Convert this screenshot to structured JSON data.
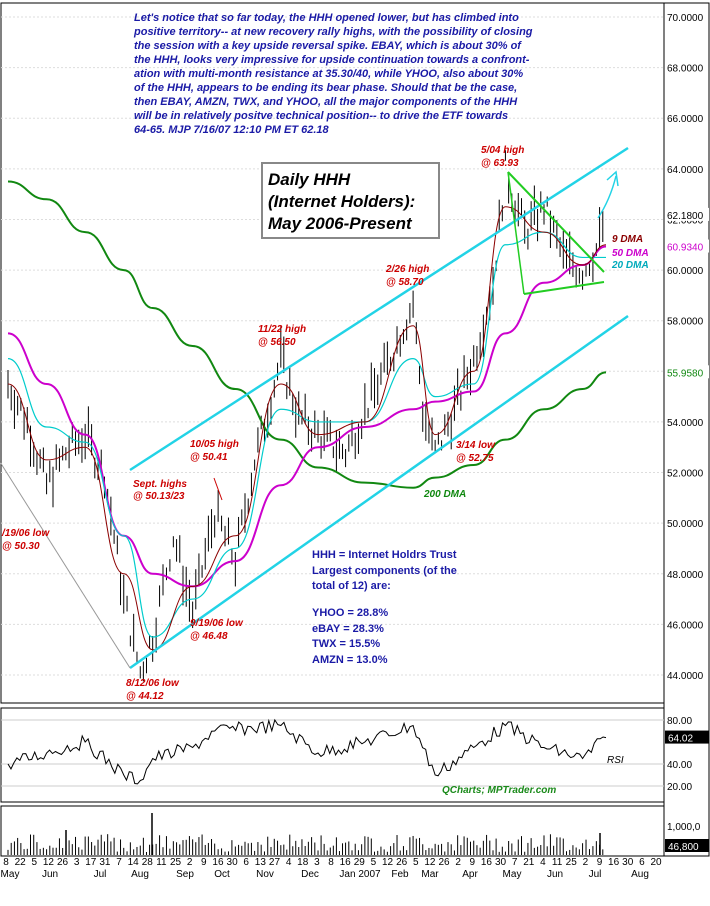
{
  "commentary": [
    "Let's notice that so far today, the HHH opened lower, but has climbed into",
    "positive territory-- at new recovery rally highs, with the possibility of closing",
    "the session with a key upside reversal spike.  EBAY, which is about 30% of",
    "the HHH, looks very impressive for upside continuation towards a confront-",
    "ation with multi-month resistance at 35.30/40, while YHOO, also about 30%",
    "of the HHH, appears to be ending its bear phase. Should that be the case,",
    "then EBAY, AMZN, TWX, and YHOO, all the major components of the HHH",
    "will be in relatively positve technical position-- to drive the ETF towards",
    "64-65.  MJP  7/16/07  12:10 PM ET  62.18"
  ],
  "title_box": [
    "Daily HHH",
    "(Internet Holders):",
    "May 2006-Present"
  ],
  "info_box": [
    "HHH = Internet Holdrs Trust",
    "Largest components (of the",
    "total of 12) are:",
    "",
    "YHOO = 28.8%",
    "eBAY = 28.3%",
    "TWX = 15.5%",
    "AMZN = 13.0%"
  ],
  "annotations": [
    {
      "lines": [
        "5/04 high",
        "@ 63.93"
      ]
    },
    {
      "lines": [
        "2/26 high",
        "@ 58.70"
      ]
    },
    {
      "lines": [
        "11/22 high",
        "@ 56.50"
      ]
    },
    {
      "lines": [
        "10/05 high",
        "@ 50.41"
      ]
    },
    {
      "lines": [
        "Sept. highs",
        "@ 50.13/23"
      ]
    },
    {
      "lines": [
        "9/19/06 low",
        "@ 46.48"
      ]
    },
    {
      "lines": [
        "8/12/06 low",
        "@ 44.12"
      ]
    },
    {
      "lines": [
        "3/14 low",
        "@ 52.75"
      ]
    },
    {
      "lines": [
        "/19/06 low",
        "@ 50.30"
      ]
    }
  ],
  "ma_labels": {
    "dma9": "9 DMA",
    "dma50": "50 DMA",
    "dma20": "20 DMA",
    "dma200": "200 DMA"
  },
  "credit": "QCharts; MPTrader.com",
  "rsi_label": "RSI",
  "colors": {
    "channel": "#22d3e6",
    "triangle": "#22cc22",
    "dma9": "#8b0000",
    "dma20": "#00cccc",
    "dma50": "#cc00cc",
    "dma200": "#118811",
    "price": "#000000",
    "annotation": "#cc0000",
    "commentary": "#1a1aa6"
  },
  "chart_data": {
    "type": "line",
    "price_axis": {
      "ticks": [
        "70.0000",
        "68.0000",
        "66.0000",
        "64.0000",
        "62.0000",
        "60.0000",
        "58.0000",
        "56.0000",
        "54.0000",
        "52.0000",
        "50.0000",
        "48.0000",
        "46.0000",
        "44.0000"
      ],
      "ylim": [
        43,
        70.5
      ],
      "last_price_labels": [
        {
          "text": "62.1800",
          "value": 62.18,
          "color": "#000000"
        },
        {
          "text": "60.9340",
          "value": 60.93,
          "color": "#cc00cc"
        },
        {
          "text": "55.9580",
          "value": 55.96,
          "color": "#118811"
        }
      ]
    },
    "rsi_axis": {
      "ticks": [
        "80.00",
        "40.00",
        "20.00"
      ],
      "ylim": [
        10,
        90
      ],
      "value_label": "64.02",
      "value": 64.02
    },
    "volume_axis": {
      "ticks": [
        "1,000,0"
      ],
      "value_label": "46,800"
    },
    "x_axis": {
      "day_ticks": [
        "8",
        "22",
        "5",
        "12",
        "26",
        "3",
        "17",
        "31",
        "7",
        "14",
        "28",
        "11",
        "25",
        "2",
        "9",
        "16",
        "30",
        "6",
        "13",
        "27",
        "4",
        "18",
        "3",
        "8",
        "16",
        "29",
        "5",
        "12",
        "26",
        "5",
        "12",
        "26",
        "2",
        "9",
        "16",
        "30",
        "7",
        "21",
        "4",
        "11",
        "25",
        "2",
        "9",
        "16",
        "30",
        "6",
        "20"
      ],
      "months": [
        "May",
        "Jun",
        "Jul",
        "Aug",
        "Sep",
        "Oct",
        "Nov",
        "Dec",
        "Jan 2007",
        "Feb",
        "Mar",
        "Apr",
        "May",
        "Jun",
        "Jul",
        "Aug"
      ]
    },
    "series": [
      {
        "key": "price",
        "x": [
          "2006-05-08",
          "2006-05-22",
          "2006-06-05",
          "2006-06-19",
          "2006-07-03",
          "2006-07-17",
          "2006-07-31",
          "2006-08-12",
          "2006-08-21",
          "2006-09-05",
          "2006-09-19",
          "2006-10-05",
          "2006-10-20",
          "2006-11-03",
          "2006-11-22",
          "2006-12-05",
          "2006-12-19",
          "2007-01-08",
          "2007-01-22",
          "2007-02-05",
          "2007-02-26",
          "2007-03-05",
          "2007-03-14",
          "2007-03-28",
          "2007-04-11",
          "2007-04-25",
          "2007-05-04",
          "2007-05-18",
          "2007-06-01",
          "2007-06-15",
          "2007-06-29",
          "2007-07-09",
          "2007-07-16"
        ],
        "values": [
          55.5,
          54.0,
          51.5,
          52.8,
          53.5,
          52.0,
          47.0,
          44.12,
          45.5,
          49.5,
          46.48,
          50.41,
          48.5,
          52.5,
          56.5,
          54.2,
          53.5,
          52.8,
          54.5,
          56.0,
          58.7,
          54.5,
          52.75,
          54.5,
          56.5,
          59.5,
          63.93,
          61.5,
          62.5,
          60.5,
          60.0,
          60.8,
          62.18
        ]
      },
      {
        "key": "dma9",
        "x": [
          "2006-05-08",
          "2006-06-05",
          "2006-07-03",
          "2006-07-31",
          "2006-08-21",
          "2006-09-19",
          "2006-10-20",
          "2006-11-22",
          "2006-12-19",
          "2007-01-22",
          "2007-02-26",
          "2007-03-14",
          "2007-04-11",
          "2007-05-04",
          "2007-06-01",
          "2007-06-29",
          "2007-07-16"
        ],
        "values": [
          55.5,
          52.5,
          53.0,
          48.0,
          45.0,
          47.5,
          49.5,
          55.5,
          53.5,
          54.0,
          57.8,
          53.5,
          56.0,
          62.5,
          61.5,
          60.2,
          61.0
        ]
      },
      {
        "key": "dma20",
        "x": [
          "2006-05-08",
          "2006-06-05",
          "2006-07-03",
          "2006-07-31",
          "2006-08-21",
          "2006-09-19",
          "2006-10-20",
          "2006-11-22",
          "2006-12-19",
          "2007-01-22",
          "2007-02-26",
          "2007-03-14",
          "2007-04-11",
          "2007-05-04",
          "2007-06-01",
          "2007-06-29",
          "2007-07-16"
        ],
        "values": [
          56.5,
          53.8,
          53.2,
          49.5,
          45.5,
          47.0,
          49.0,
          54.5,
          54.0,
          54.0,
          56.5,
          55.0,
          55.5,
          61.0,
          61.5,
          60.5,
          60.5
        ]
      },
      {
        "key": "dma50",
        "x": [
          "2006-05-08",
          "2006-06-05",
          "2006-07-03",
          "2006-07-31",
          "2006-08-21",
          "2006-09-19",
          "2006-10-20",
          "2006-11-22",
          "2006-12-19",
          "2007-01-22",
          "2007-02-26",
          "2007-03-14",
          "2007-04-11",
          "2007-05-04",
          "2007-06-01",
          "2007-06-29",
          "2007-07-16"
        ],
        "values": [
          57.5,
          55.5,
          53.5,
          49.5,
          48.0,
          47.5,
          48.5,
          51.5,
          53.0,
          53.8,
          54.5,
          54.8,
          55.2,
          57.5,
          59.5,
          60.2,
          60.93
        ]
      },
      {
        "key": "dma200",
        "x": [
          "2006-05-08",
          "2006-06-05",
          "2006-07-03",
          "2006-07-31",
          "2006-08-21",
          "2006-09-19",
          "2006-10-20",
          "2006-11-22",
          "2006-12-19",
          "2007-01-22",
          "2007-02-26",
          "2007-03-14",
          "2007-04-11",
          "2007-05-04",
          "2007-06-01",
          "2007-06-29",
          "2007-07-16"
        ],
        "values": [
          63.5,
          62.8,
          61.5,
          60.0,
          58.5,
          57.0,
          55.3,
          53.3,
          52.2,
          51.6,
          51.4,
          51.8,
          52.3,
          53.3,
          54.5,
          55.3,
          55.96
        ]
      },
      {
        "key": "rsi",
        "x": [
          "2006-05-08",
          "2006-06-05",
          "2006-07-03",
          "2006-07-31",
          "2006-08-12",
          "2006-08-21",
          "2006-09-19",
          "2006-10-05",
          "2006-11-22",
          "2006-12-19",
          "2007-01-22",
          "2007-02-26",
          "2007-03-14",
          "2007-04-11",
          "2007-05-04",
          "2007-06-01",
          "2007-06-29",
          "2007-07-16"
        ],
        "values": [
          40,
          50,
          60,
          30,
          25,
          45,
          55,
          70,
          75,
          50,
          60,
          75,
          30,
          55,
          75,
          55,
          45,
          64.02
        ]
      }
    ]
  }
}
